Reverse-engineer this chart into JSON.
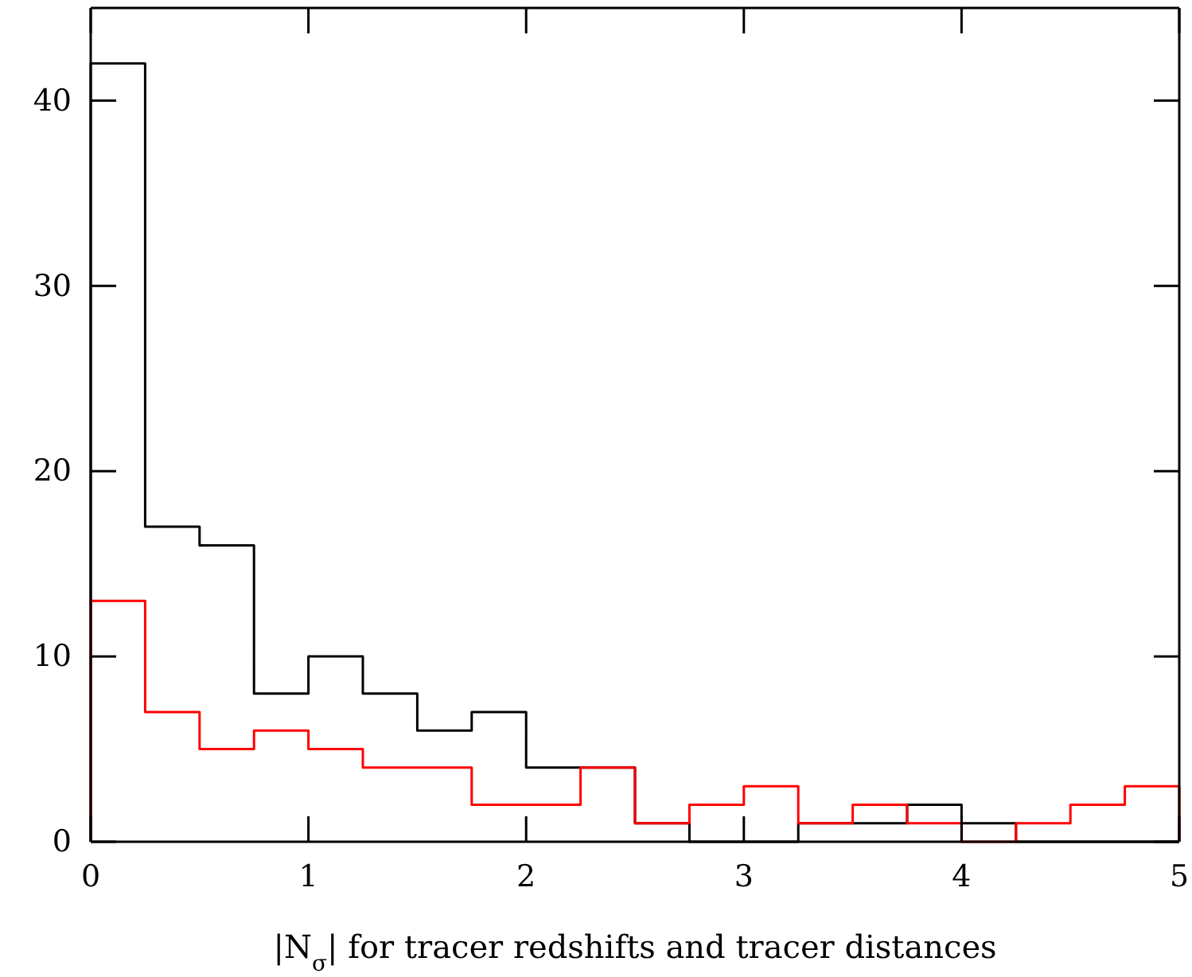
{
  "chart_data": {
    "type": "histogram",
    "xlabel": "|N$_{σ}$| for tracer redshifts and tracer distances",
    "bins": [
      0,
      0.25,
      0.5,
      0.75,
      1,
      1.25,
      1.5,
      1.75,
      2,
      2.25,
      2.5,
      2.75,
      3,
      3.25,
      3.5,
      3.75,
      4,
      4.25,
      4.5,
      4.75,
      5
    ],
    "series": [
      {
        "color": "#000000",
        "values": [
          42,
          17,
          16,
          8,
          10,
          8,
          6,
          7,
          4,
          4,
          1,
          0,
          0,
          1,
          1,
          2,
          1,
          0,
          0,
          0
        ]
      },
      {
        "color": "#ff0000",
        "values": [
          13,
          7,
          5,
          6,
          5,
          4,
          4,
          2,
          2,
          4,
          1,
          2,
          3,
          1,
          2,
          1,
          0,
          1,
          2,
          3
        ]
      }
    ],
    "xlim": [
      0,
      5
    ],
    "xticks": [
      0,
      1,
      2,
      3,
      4,
      5
    ],
    "ylim": [
      0,
      45
    ],
    "yticks": [
      0,
      10,
      20,
      30,
      40
    ],
    "grid": false
  }
}
